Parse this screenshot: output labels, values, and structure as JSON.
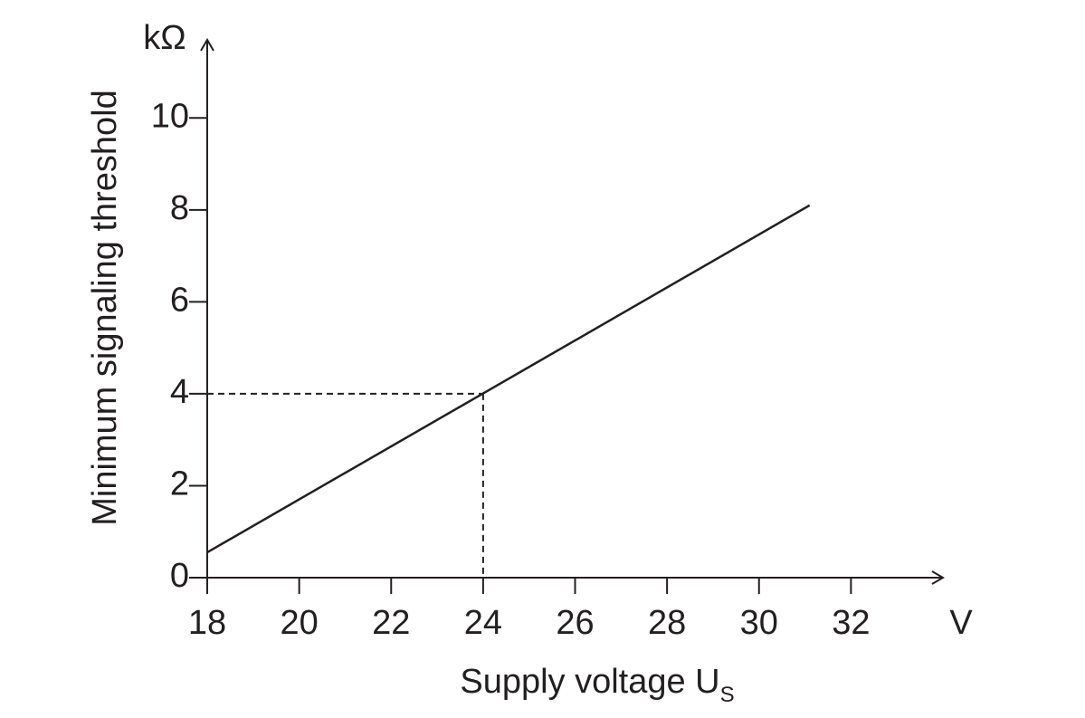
{
  "chart_data": {
    "type": "line",
    "y_label": "Minimum signaling threshold",
    "y_unit": "kΩ",
    "x_label": {
      "text": "Supply voltage U",
      "subscript": "S"
    },
    "x_unit": "V",
    "x": [
      18,
      31.1
    ],
    "series": [
      {
        "color": "#231f20",
        "values": [
          0.55,
          8.1
        ]
      }
    ],
    "reference": {
      "x": 24,
      "y": 4,
      "style": "dashed"
    },
    "xlim": [
      18,
      34
    ],
    "xticks": [
      18,
      20,
      22,
      24,
      26,
      28,
      30,
      32
    ],
    "ylim": [
      0,
      11.7
    ],
    "yticks": [
      0,
      2,
      4,
      6,
      8,
      10
    ],
    "grid": false
  }
}
